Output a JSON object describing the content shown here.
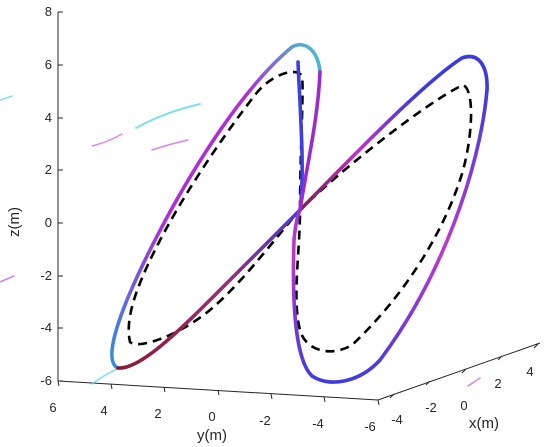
{
  "chart_data": {
    "type": "line",
    "projection": "3d",
    "title": "",
    "xlabel": "x(m)",
    "ylabel": "y(m)",
    "zlabel": "z(m)",
    "xlim": [
      -5,
      5
    ],
    "ylim": [
      -6,
      6
    ],
    "zlim": [
      -6,
      8
    ],
    "x_ticks": [
      "-4",
      "-2",
      "0",
      "2",
      "4"
    ],
    "y_ticks": [
      "6",
      "4",
      "2",
      "0",
      "-2",
      "-4",
      "-6"
    ],
    "z_ticks": [
      "-6",
      "-4",
      "-2",
      "0",
      "2",
      "4",
      "6",
      "8"
    ],
    "grid": false,
    "legend": "none",
    "series": [
      {
        "style": "solid, color varies along path (magenta / blue / cyan / dark red)",
        "description": "actual trajectory — figure-eight loop",
        "color_stops": [
          "#c026d3",
          "#3b3bdb",
          "#35c8d8",
          "#8b1a3a"
        ]
      },
      {
        "style": "dashed",
        "description": "reference trajectory — figure-eight loop",
        "color": "#000000"
      }
    ]
  }
}
